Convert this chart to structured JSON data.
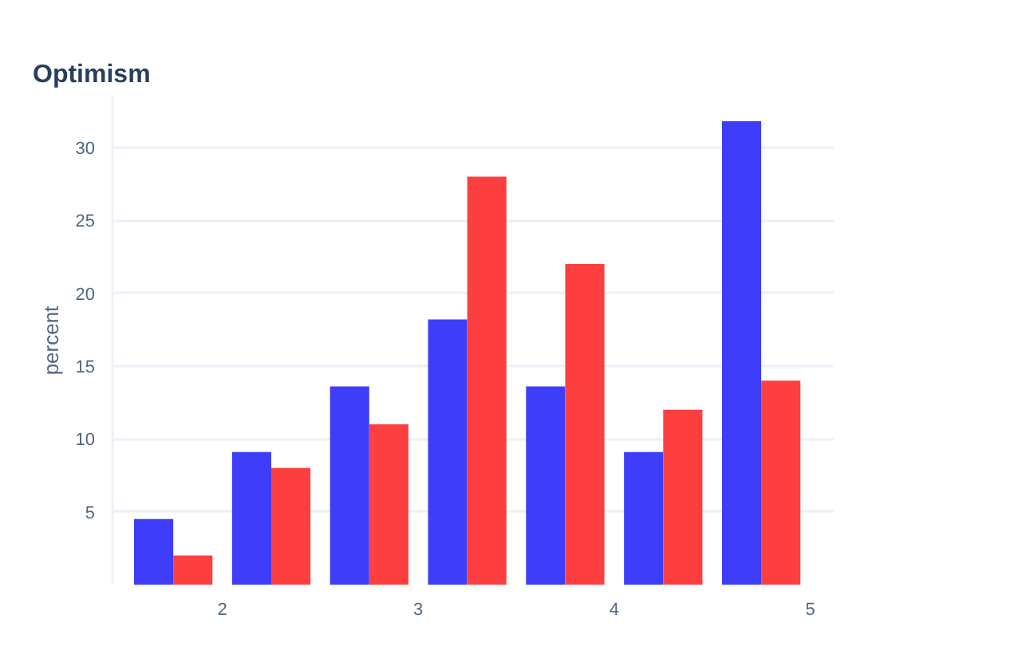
{
  "chart_data": {
    "type": "histogram",
    "title": "Optimism",
    "ylabel": "percent",
    "bins": [
      1.5,
      2,
      2.5,
      3,
      3.5,
      4,
      4.5,
      5
    ],
    "series": [
      {
        "color": "#3d3dfa",
        "values": [
          4.5,
          9.1,
          13.6,
          18.2,
          13.6,
          9.1,
          31.8
        ]
      },
      {
        "color": "#fd3f3f",
        "values": [
          2,
          8,
          11,
          28,
          22,
          12,
          14
        ]
      }
    ],
    "xlim": [
      1.44,
      5.12
    ],
    "xticks": [
      2,
      3,
      4,
      5
    ],
    "ylim": [
      0,
      33.5
    ],
    "yticks": [
      5,
      10,
      15,
      20,
      25,
      30
    ],
    "grid": "y"
  }
}
